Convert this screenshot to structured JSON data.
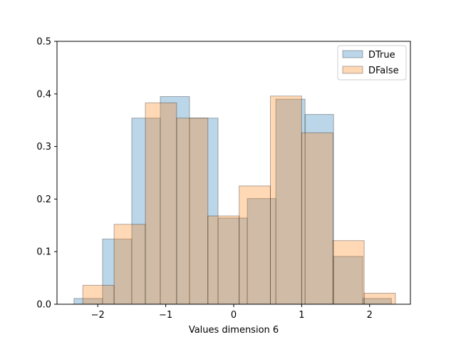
{
  "chart_data": {
    "type": "bar",
    "title": "",
    "xlabel": "Values dimension 6",
    "ylabel": "",
    "xlim": [
      -2.6,
      2.6
    ],
    "ylim": [
      0,
      0.5
    ],
    "x_ticks": [
      -2,
      -1,
      0,
      1,
      2
    ],
    "x_tick_labels": [
      "−2",
      "−1",
      "0",
      "1",
      "2"
    ],
    "y_ticks": [
      0.0,
      0.1,
      0.2,
      0.3,
      0.4,
      0.5
    ],
    "y_tick_labels": [
      "0.0",
      "0.1",
      "0.2",
      "0.3",
      "0.4",
      "0.5"
    ],
    "grid": false,
    "legend_position": "top-right",
    "series": [
      {
        "name": "DTrue",
        "color": "#1f77b4",
        "bins": [
          {
            "x0": -2.35,
            "x1": -1.93,
            "y": 0.011
          },
          {
            "x0": -1.93,
            "x1": -1.5,
            "y": 0.124
          },
          {
            "x0": -1.5,
            "x1": -1.08,
            "y": 0.354
          },
          {
            "x0": -1.08,
            "x1": -0.65,
            "y": 0.395
          },
          {
            "x0": -0.65,
            "x1": -0.23,
            "y": 0.354
          },
          {
            "x0": -0.23,
            "x1": 0.2,
            "y": 0.164
          },
          {
            "x0": 0.2,
            "x1": 0.62,
            "y": 0.201
          },
          {
            "x0": 0.62,
            "x1": 1.05,
            "y": 0.39
          },
          {
            "x0": 1.05,
            "x1": 1.47,
            "y": 0.361
          },
          {
            "x0": 1.47,
            "x1": 1.9,
            "y": 0.091
          },
          {
            "x0": 1.9,
            "x1": 2.32,
            "y": 0.011
          }
        ]
      },
      {
        "name": "DFalse",
        "color": "#ff7f0e",
        "bins": [
          {
            "x0": -2.22,
            "x1": -1.76,
            "y": 0.036
          },
          {
            "x0": -1.76,
            "x1": -1.3,
            "y": 0.152
          },
          {
            "x0": -1.3,
            "x1": -0.84,
            "y": 0.383
          },
          {
            "x0": -0.84,
            "x1": -0.38,
            "y": 0.354
          },
          {
            "x0": -0.38,
            "x1": 0.08,
            "y": 0.168
          },
          {
            "x0": 0.08,
            "x1": 0.54,
            "y": 0.225
          },
          {
            "x0": 0.54,
            "x1": 1.0,
            "y": 0.396
          },
          {
            "x0": 1.0,
            "x1": 1.46,
            "y": 0.326
          },
          {
            "x0": 1.46,
            "x1": 1.92,
            "y": 0.121
          },
          {
            "x0": 1.92,
            "x1": 2.38,
            "y": 0.021
          }
        ]
      }
    ]
  }
}
